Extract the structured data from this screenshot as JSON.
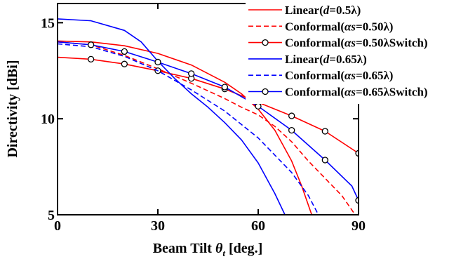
{
  "chart_data": {
    "type": "line",
    "xlabel": "Beam Tilt θt [deg.]",
    "xlabel_main": "Beam Tilt ",
    "xlabel_sym": "θ",
    "xlabel_sub": "t",
    "xlabel_unit": " [deg.]",
    "ylabel": "Directivity [dBi]",
    "xlim": [
      0,
      90
    ],
    "ylim": [
      5,
      16
    ],
    "xticks": [
      "0",
      "30",
      "60",
      "90"
    ],
    "xtick_values": [
      0,
      30,
      60,
      90
    ],
    "yticks": [
      "5",
      "10",
      "15"
    ],
    "ytick_values": [
      5,
      10,
      15
    ],
    "grid": false,
    "legend_position": "top-right",
    "series": [
      {
        "name": "Linear(d=0.5λ)",
        "legend": {
          "pre": "Linear(",
          "ital": "d",
          "post": "=0.5λ)"
        },
        "color": "#ff0000",
        "dash": "solid",
        "markers": false,
        "x": [
          0,
          10,
          20,
          30,
          40,
          50,
          55,
          60,
          65,
          70,
          73,
          76
        ],
        "y": [
          14.05,
          14.0,
          13.8,
          13.4,
          12.8,
          11.9,
          11.3,
          10.5,
          9.4,
          7.8,
          6.5,
          5.0
        ]
      },
      {
        "name": "Conformal(αs=0.50λ)",
        "legend": {
          "pre": "Conformal(",
          "ital": "αs",
          "post": "=0.50λ)"
        },
        "color": "#ff0000",
        "dash": "dashed",
        "markers": false,
        "x": [
          0,
          10,
          20,
          30,
          40,
          50,
          55,
          60,
          65,
          70,
          75,
          80,
          85,
          89
        ],
        "y": [
          14.0,
          13.85,
          13.3,
          12.6,
          11.85,
          11.05,
          10.6,
          10.2,
          9.6,
          8.8,
          7.8,
          6.9,
          6.0,
          5.0
        ]
      },
      {
        "name": "Conformal(αs=0.50λSwitch)",
        "legend": {
          "pre": "Conformal(",
          "ital": "αs",
          "post": "=0.50λSwitch)"
        },
        "color": "#ff0000",
        "dash": "solid",
        "markers": true,
        "x": [
          0,
          10,
          20,
          30,
          40,
          50,
          60,
          70,
          80,
          90
        ],
        "y": [
          13.2,
          13.1,
          12.85,
          12.5,
          12.1,
          11.55,
          10.85,
          10.15,
          9.35,
          8.2
        ]
      },
      {
        "name": "Linear(d=0.65λ)",
        "legend": {
          "pre": "Linear(",
          "ital": "d",
          "post": "=0.65λ)"
        },
        "color": "#0000ff",
        "dash": "solid",
        "markers": false,
        "x": [
          0,
          10,
          20,
          25,
          30,
          35,
          40,
          45,
          50,
          55,
          60,
          65,
          68
        ],
        "y": [
          15.2,
          15.1,
          14.6,
          14.0,
          13.0,
          12.1,
          11.3,
          10.6,
          9.8,
          8.9,
          7.7,
          6.1,
          5.0
        ]
      },
      {
        "name": "Conformal(αs=0.65λ)",
        "legend": {
          "pre": "Conformal(",
          "ital": "αs",
          "post": "=0.65λ)"
        },
        "color": "#0000ff",
        "dash": "dashed",
        "markers": false,
        "x": [
          0,
          10,
          20,
          30,
          40,
          50,
          60,
          70,
          75,
          78
        ],
        "y": [
          13.9,
          13.75,
          13.25,
          12.5,
          11.5,
          10.4,
          9.0,
          7.2,
          6.0,
          5.0
        ]
      },
      {
        "name": "Conformal(αs=0.65λSwitch)",
        "legend": {
          "pre": "Conformal(",
          "ital": "αs",
          "post": "=0.65λSwitch)"
        },
        "color": "#0000ff",
        "dash": "solid",
        "markers": true,
        "x": [
          0,
          10,
          20,
          30,
          40,
          50,
          60,
          70,
          80,
          88,
          90
        ],
        "y": [
          14.0,
          13.85,
          13.5,
          12.95,
          12.35,
          11.65,
          10.65,
          9.4,
          7.85,
          6.5,
          5.75
        ]
      }
    ]
  }
}
